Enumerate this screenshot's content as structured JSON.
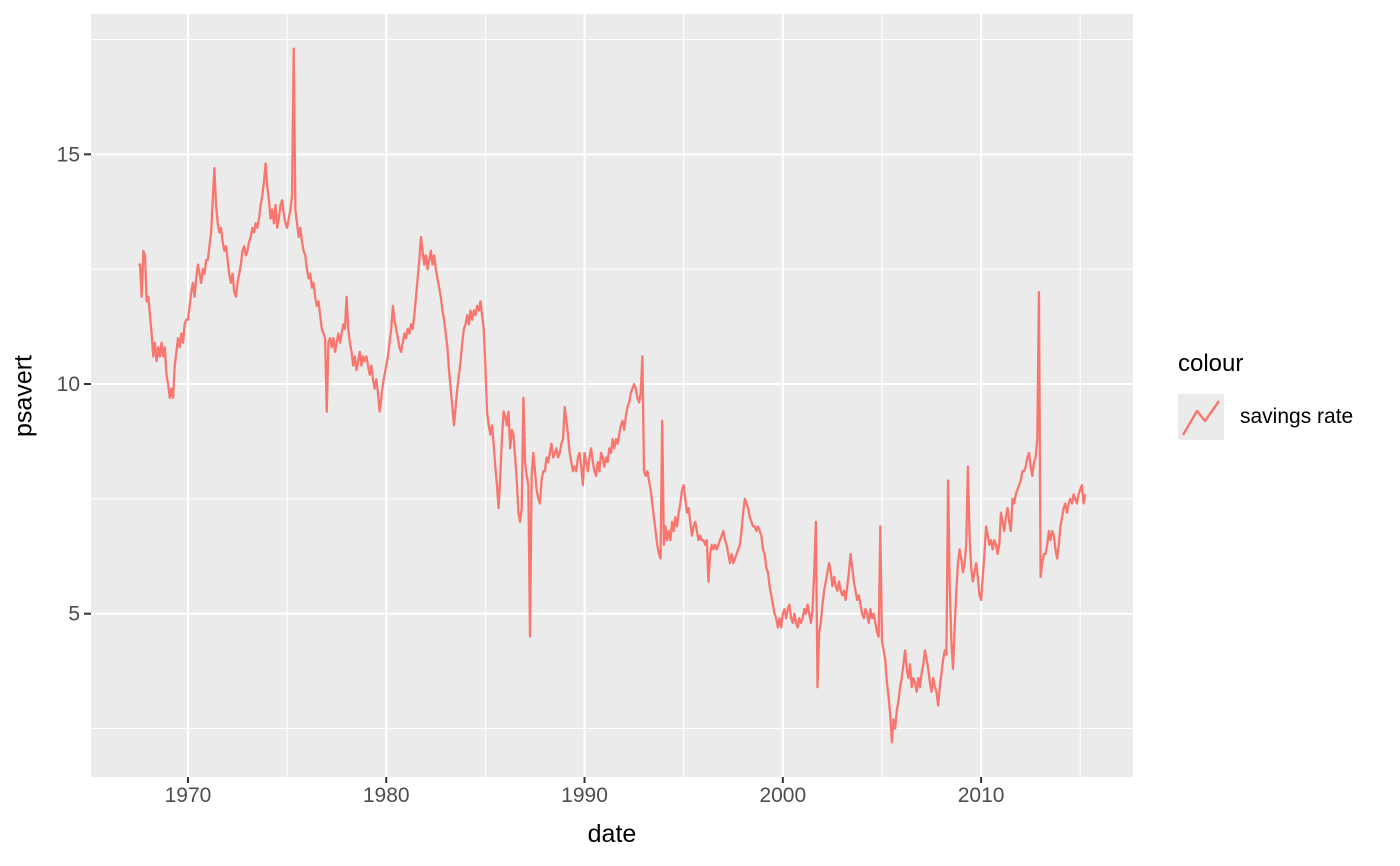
{
  "figure": {
    "background": "#FFFFFF",
    "panel_background": "#EBEBEB",
    "grid_color": "#FFFFFF",
    "axis_text_color": "#4D4D4D",
    "axis_title_color": "#000000",
    "tick_mark_color": "#333333"
  },
  "axes": {
    "x_title": "date",
    "y_title": "psavert",
    "x_tick_labels": [
      "1970",
      "1980",
      "1990",
      "2000",
      "2010"
    ],
    "y_tick_labels": [
      "5",
      "10",
      "15"
    ]
  },
  "legend": {
    "title": "colour",
    "entries": [
      {
        "label": "savings rate",
        "color": "#F8766D",
        "key_glyph": "timeseries-line"
      }
    ]
  },
  "chart_data": {
    "type": "line",
    "title": "",
    "xlabel": "date",
    "ylabel": "psavert",
    "series_name": "savings rate",
    "line_color": "#F8766D",
    "frequency": "monthly",
    "x_start": "1967-07",
    "x_end": "2015-04",
    "xlim_decimal_years": [
      1965.11,
      2017.66
    ],
    "ylim": [
      1.445,
      18.055
    ],
    "x_major_ticks": [
      1970,
      1980,
      1990,
      2000,
      2010
    ],
    "x_minor_gridlines": [
      1975,
      1985,
      1995,
      2005,
      2015
    ],
    "y_major_ticks": [
      5,
      10,
      15
    ],
    "y_minor_gridlines": [
      2.5,
      7.5,
      12.5,
      17.5
    ],
    "grid": true,
    "legend_position": "right",
    "values": [
      12.6,
      12.6,
      11.9,
      12.9,
      12.8,
      11.8,
      11.9,
      11.5,
      11.1,
      10.6,
      10.9,
      10.5,
      10.8,
      10.6,
      10.9,
      10.6,
      10.8,
      10.2,
      10.0,
      9.7,
      9.9,
      9.7,
      10.4,
      10.7,
      11.0,
      10.8,
      11.1,
      10.9,
      11.3,
      11.4,
      11.4,
      11.7,
      12.0,
      12.2,
      11.9,
      12.3,
      12.6,
      12.4,
      12.2,
      12.5,
      12.4,
      12.7,
      12.7,
      13.0,
      13.3,
      14.0,
      14.7,
      13.9,
      13.5,
      13.3,
      13.4,
      13.1,
      12.9,
      13.0,
      12.7,
      12.4,
      12.2,
      12.4,
      12.0,
      11.9,
      12.2,
      12.4,
      12.6,
      12.9,
      13.0,
      12.8,
      12.9,
      13.1,
      13.2,
      13.4,
      13.3,
      13.5,
      13.4,
      13.6,
      13.9,
      14.1,
      14.4,
      14.8,
      14.3,
      14.0,
      13.6,
      13.8,
      13.5,
      13.9,
      13.4,
      13.6,
      13.9,
      14.0,
      13.7,
      13.5,
      13.4,
      13.6,
      13.8,
      14.1,
      17.3,
      13.8,
      13.5,
      13.2,
      13.4,
      13.1,
      12.9,
      12.8,
      12.5,
      12.3,
      12.4,
      12.1,
      12.2,
      11.9,
      11.7,
      11.8,
      11.5,
      11.2,
      11.1,
      11.0,
      9.4,
      10.9,
      11.0,
      10.8,
      11.0,
      10.7,
      10.9,
      11.1,
      10.9,
      11.1,
      11.3,
      11.2,
      11.9,
      11.2,
      10.9,
      10.7,
      10.4,
      10.6,
      10.3,
      10.5,
      10.7,
      10.4,
      10.6,
      10.5,
      10.6,
      10.4,
      10.2,
      10.4,
      10.1,
      9.9,
      10.1,
      9.8,
      9.4,
      9.7,
      10.0,
      10.2,
      10.4,
      10.6,
      10.9,
      11.2,
      11.7,
      11.4,
      11.2,
      11.0,
      10.8,
      10.7,
      10.9,
      11.1,
      11.0,
      11.2,
      11.1,
      11.3,
      11.2,
      11.5,
      11.9,
      12.3,
      12.7,
      13.2,
      12.9,
      12.6,
      12.8,
      12.5,
      12.7,
      12.9,
      12.6,
      12.8,
      12.5,
      12.3,
      12.1,
      11.9,
      11.6,
      11.4,
      11.1,
      10.8,
      10.3,
      9.9,
      9.5,
      9.1,
      9.5,
      9.9,
      10.2,
      10.5,
      10.9,
      11.2,
      11.3,
      11.5,
      11.3,
      11.6,
      11.4,
      11.6,
      11.5,
      11.7,
      11.6,
      11.8,
      11.5,
      11.2,
      10.4,
      9.4,
      9.1,
      8.9,
      9.1,
      8.7,
      8.2,
      7.8,
      7.3,
      8.0,
      8.8,
      9.4,
      9.3,
      9.1,
      9.4,
      8.6,
      9.0,
      8.9,
      8.4,
      7.9,
      7.2,
      7.0,
      7.3,
      9.7,
      8.3,
      8.0,
      7.8,
      4.5,
      8.0,
      8.5,
      8.1,
      7.7,
      7.5,
      7.4,
      7.9,
      8.1,
      8.1,
      8.4,
      8.3,
      8.5,
      8.7,
      8.4,
      8.5,
      8.6,
      8.4,
      8.5,
      8.7,
      8.8,
      9.5,
      9.2,
      8.9,
      8.5,
      8.3,
      8.1,
      8.2,
      8.1,
      8.4,
      8.5,
      8.2,
      7.8,
      8.5,
      8.3,
      8.1,
      8.4,
      8.6,
      8.3,
      8.1,
      8.0,
      8.3,
      8.1,
      8.5,
      8.4,
      8.2,
      8.4,
      8.3,
      8.6,
      8.5,
      8.8,
      8.6,
      8.8,
      8.7,
      8.9,
      9.1,
      9.2,
      9.0,
      9.3,
      9.5,
      9.6,
      9.8,
      9.9,
      10.0,
      9.9,
      9.7,
      9.6,
      9.8,
      10.6,
      8.1,
      8.0,
      8.1,
      7.9,
      7.7,
      7.4,
      7.1,
      6.8,
      6.5,
      6.3,
      6.2,
      9.2,
      6.5,
      6.9,
      6.6,
      6.8,
      6.6,
      7.0,
      6.8,
      7.1,
      6.9,
      7.2,
      7.4,
      7.7,
      7.8,
      7.5,
      7.2,
      7.3,
      7.0,
      6.7,
      6.9,
      7.0,
      6.8,
      6.6,
      6.7,
      6.6,
      6.6,
      6.5,
      6.6,
      5.7,
      6.3,
      6.5,
      6.4,
      6.5,
      6.4,
      6.5,
      6.6,
      6.7,
      6.8,
      6.6,
      6.5,
      6.3,
      6.1,
      6.3,
      6.1,
      6.2,
      6.3,
      6.4,
      6.5,
      6.8,
      7.2,
      7.5,
      7.4,
      7.3,
      7.1,
      7.0,
      6.9,
      6.9,
      6.8,
      6.9,
      6.8,
      6.7,
      6.4,
      6.3,
      6.0,
      5.9,
      5.6,
      5.4,
      5.2,
      5.0,
      4.9,
      4.7,
      4.9,
      4.7,
      5.0,
      5.1,
      4.9,
      5.1,
      5.2,
      4.9,
      4.8,
      5.0,
      4.8,
      4.7,
      4.9,
      4.8,
      4.9,
      5.1,
      5.0,
      5.2,
      5.0,
      4.8,
      5.1,
      5.9,
      7.0,
      3.4,
      4.6,
      4.8,
      5.2,
      5.5,
      5.7,
      5.9,
      6.1,
      5.9,
      5.6,
      5.8,
      5.6,
      5.5,
      5.7,
      5.5,
      5.4,
      5.5,
      5.3,
      5.6,
      5.9,
      6.3,
      6.0,
      5.7,
      5.5,
      5.3,
      5.4,
      5.2,
      5.0,
      4.9,
      5.1,
      5.0,
      4.8,
      5.1,
      4.9,
      5.0,
      4.8,
      4.6,
      4.5,
      6.9,
      4.4,
      4.2,
      4.0,
      3.5,
      3.2,
      2.8,
      2.2,
      2.7,
      2.5,
      2.9,
      3.1,
      3.4,
      3.6,
      3.9,
      4.2,
      3.8,
      3.6,
      3.9,
      3.4,
      3.6,
      3.5,
      3.3,
      3.6,
      3.4,
      3.7,
      3.9,
      4.2,
      4.0,
      3.8,
      3.5,
      3.3,
      3.6,
      3.4,
      3.3,
      3.0,
      3.4,
      3.7,
      4.0,
      4.2,
      4.1,
      7.9,
      5.6,
      4.4,
      3.8,
      4.7,
      5.5,
      6.1,
      6.4,
      6.2,
      5.9,
      6.1,
      6.5,
      8.2,
      6.7,
      6.0,
      5.7,
      5.9,
      6.1,
      5.8,
      5.4,
      5.3,
      5.8,
      6.3,
      6.9,
      6.7,
      6.5,
      6.6,
      6.4,
      6.6,
      6.5,
      6.3,
      6.5,
      7.2,
      7.0,
      6.8,
      7.1,
      7.3,
      7.0,
      6.8,
      7.5,
      7.4,
      7.6,
      7.7,
      7.8,
      7.9,
      8.1,
      8.1,
      8.2,
      8.4,
      8.5,
      8.2,
      8.0,
      8.3,
      8.4,
      8.8,
      12.0,
      5.8,
      6.1,
      6.3,
      6.3,
      6.5,
      6.8,
      6.6,
      6.8,
      6.7,
      6.4,
      6.2,
      6.5,
      6.9,
      7.1,
      7.3,
      7.4,
      7.2,
      7.4,
      7.5,
      7.4,
      7.6,
      7.5,
      7.4,
      7.6,
      7.7,
      7.8,
      7.4,
      7.6
    ]
  }
}
